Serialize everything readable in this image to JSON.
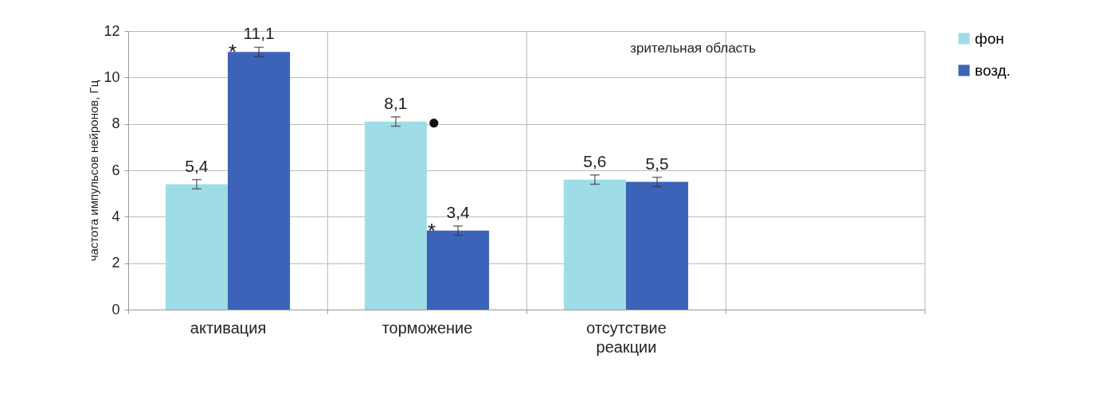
{
  "chart_data": {
    "type": "bar",
    "title": "зрительная область",
    "categories": [
      "активация",
      "торможение",
      "отсутствие реакции",
      null
    ],
    "ylabel": "частота импульсов нейронов, Гц",
    "series": [
      {
        "name": "фон",
        "color": "#9fdde6",
        "values": [
          5.4,
          8.1,
          5.6,
          null
        ],
        "errors": [
          0.2,
          0.2,
          0.2,
          null
        ],
        "value_labels": [
          "5,4",
          "8,1",
          "5,6",
          null
        ]
      },
      {
        "name": "возд.",
        "color": "#3d63b8",
        "values": [
          11.1,
          3.4,
          5.5,
          null
        ],
        "errors": [
          0.2,
          0.2,
          0.2,
          null
        ],
        "value_labels": [
          "11,1",
          "3,4",
          "5,5",
          null
        ]
      }
    ],
    "annotations": [
      {
        "text": "*",
        "x": "активация",
        "y": 11.1
      },
      {
        "text": "*",
        "x": "торможение",
        "y": 3.4
      },
      {
        "text": "●",
        "x": "торможение",
        "y": 8.1
      }
    ],
    "ylim": [
      0,
      12
    ],
    "yticks": [
      0,
      2,
      4,
      6,
      8,
      10,
      12
    ],
    "grid": "y",
    "legend": "right"
  }
}
